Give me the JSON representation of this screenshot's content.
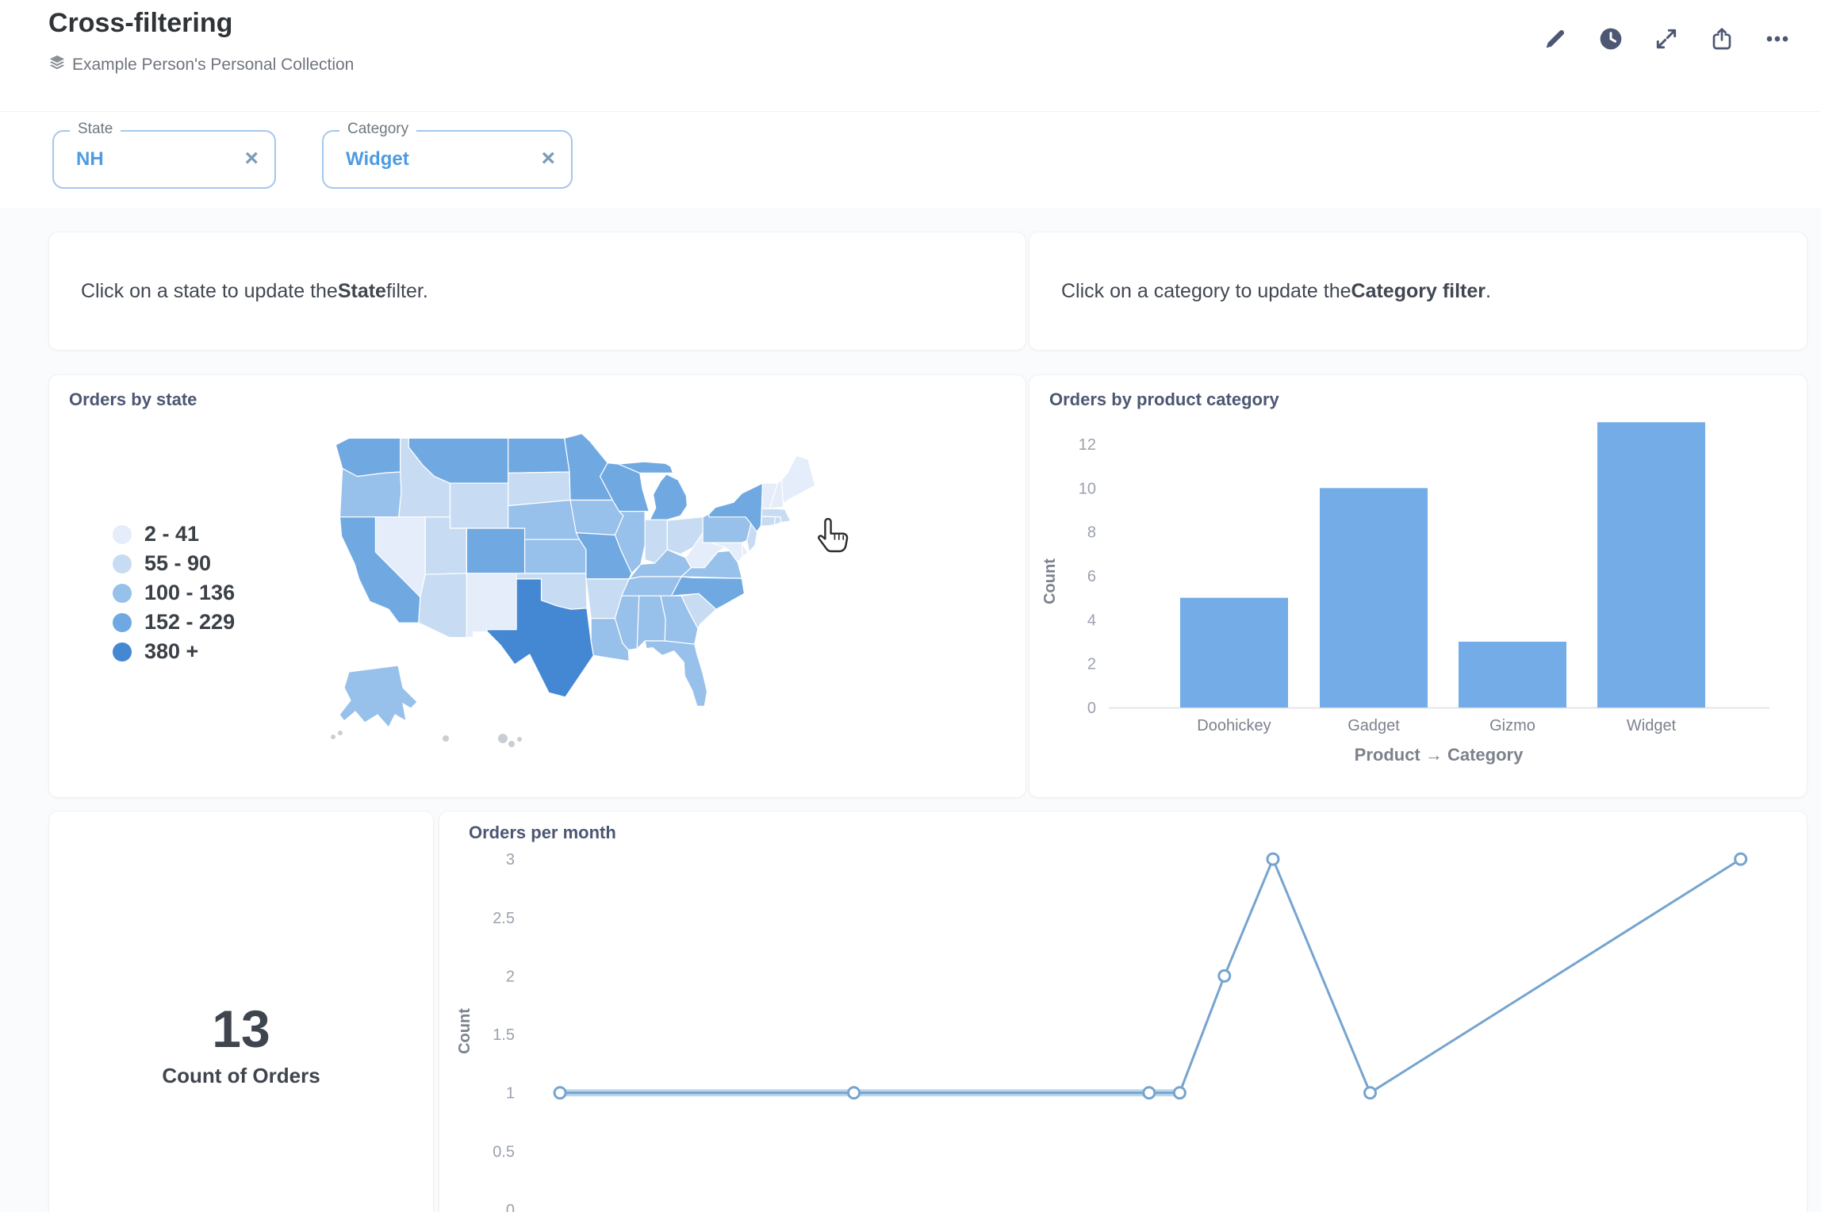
{
  "header": {
    "title": "Cross-filtering",
    "collection": "Example Person's Personal Collection"
  },
  "filters": [
    {
      "label": "State",
      "value": "NH",
      "remove": "×"
    },
    {
      "label": "Category",
      "value": "Widget",
      "remove": "×"
    }
  ],
  "text_cards": [
    {
      "parts": [
        {
          "t": "Click on a state to update the ",
          "b": false
        },
        {
          "t": "State",
          "b": true
        },
        {
          "t": " filter.",
          "b": false
        }
      ]
    },
    {
      "parts": [
        {
          "t": "Click on a category to update the ",
          "b": false
        },
        {
          "t": "Category filter",
          "b": true
        },
        {
          "t": ".",
          "b": false
        }
      ]
    }
  ],
  "colors": {
    "brand": "#509EE3",
    "bar": "#73ACE6",
    "line": "#76A4CE",
    "line_halo": "#BBD7EE",
    "marker_fill": "#FFFFFF",
    "axis_text": "#9BA1AD",
    "axis_title": "#7C828D",
    "axis_line": "#E3E6EA",
    "map_stroke": "#FFFFFF",
    "no_data": "#C9CED4"
  },
  "chart_data": [
    {
      "type": "choropleth-map",
      "title": "Orders by state",
      "legend": [
        {
          "label": "2 - 41",
          "color": "#E4EDF9"
        },
        {
          "label": "55 - 90",
          "color": "#C7DCF3"
        },
        {
          "label": "100 - 136",
          "color": "#97C0EA"
        },
        {
          "label": "152 - 229",
          "color": "#70A9E2"
        },
        {
          "label": "380 +",
          "color": "#4488D4"
        }
      ],
      "state_bins": {
        "WA": 4,
        "OR": 3,
        "CA": 4,
        "NV": 1,
        "ID": 2,
        "MT": 4,
        "WY": 2,
        "UT": 2,
        "CO": 4,
        "AZ": 2,
        "NM": 1,
        "ND": 4,
        "SD": 2,
        "NE": 3,
        "KS": 3,
        "OK": 2,
        "TX": 5,
        "MN": 4,
        "IA": 3,
        "MO": 4,
        "AR": 2,
        "LA": 3,
        "WI": 4,
        "IL": 3,
        "IN": 2,
        "OH": 2,
        "MI": 4,
        "KY": 3,
        "TN": 3,
        "MS": 3,
        "AL": 3,
        "GA": 3,
        "FL": 3,
        "SC": 2,
        "NC": 4,
        "VA": 3,
        "WV": 1,
        "MD": 1,
        "DE": 1,
        "PA": 3,
        "NJ": 2,
        "NY": 4,
        "CT": 2,
        "RI": 2,
        "MA": 2,
        "VT": 1,
        "NH": 1,
        "ME": 1,
        "AK": 3,
        "HI": 0
      }
    },
    {
      "type": "bar",
      "title": "Orders by product category",
      "categories": [
        "Doohickey",
        "Gadget",
        "Gizmo",
        "Widget"
      ],
      "values": [
        5,
        10,
        3,
        13
      ],
      "xlabel": "Product → Category",
      "ylabel": "Count",
      "yticks": [
        0,
        2,
        4,
        6,
        8,
        10,
        12
      ],
      "ylim": [
        0,
        13.4
      ]
    },
    {
      "type": "line",
      "title": "Orders per month",
      "ylabel": "Count",
      "yticks": [
        3,
        2.5,
        2,
        1.5,
        1,
        0.5,
        0
      ],
      "ylim": [
        0,
        3
      ],
      "points": [
        {
          "xf": 0.028,
          "v": 1
        },
        {
          "xf": 0.258,
          "v": 1
        },
        {
          "xf": 0.489,
          "v": 1
        },
        {
          "xf": 0.513,
          "v": 1
        },
        {
          "xf": 0.548,
          "v": 2
        },
        {
          "xf": 0.586,
          "v": 3
        },
        {
          "xf": 0.662,
          "v": 1
        },
        {
          "xf": 0.952,
          "v": 3
        }
      ]
    },
    {
      "type": "scalar",
      "value": "13",
      "label": "Count of Orders"
    }
  ]
}
